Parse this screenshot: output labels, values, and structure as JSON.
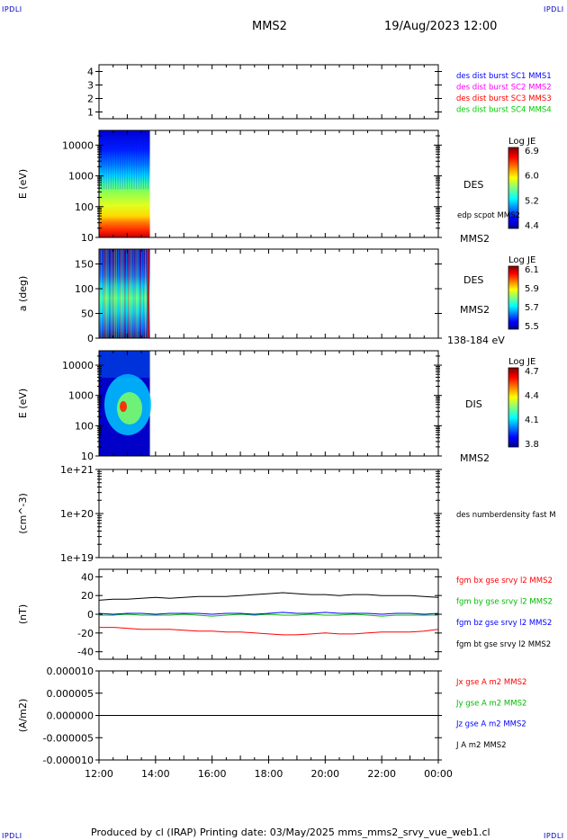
{
  "header": {
    "logo_tl": "IPDLI",
    "logo_tr": "IPDLI",
    "logo_bl": "IPDLI",
    "logo_br": "IPDLI",
    "spacecraft": "MMS2",
    "datetime": "19/Aug/2023 12:00"
  },
  "footer": {
    "text": "Produced by cl (IRAP)   Printing date: 03/May/2025   mms_mms2_srvy_vue_web1.cl"
  },
  "colors": {
    "mms1": "#0000ff",
    "mms2": "#ff00ff",
    "mms3": "#ff0000",
    "mms4": "#00cc00",
    "bx": "#ff0000",
    "by": "#00bb00",
    "bz": "#0000ff",
    "bt": "#000000"
  },
  "chart_data": [
    {
      "id": "panel1",
      "type": "line",
      "ylabel": "",
      "ylim": [
        0.5,
        4.5
      ],
      "yticks": [
        "1",
        "2",
        "3",
        "4"
      ],
      "xlim": [
        "12:00",
        "00:00"
      ],
      "legend": [
        {
          "text": "des dist burst SC1 MMS1",
          "color": "#0000ff"
        },
        {
          "text": "des dist burst SC2 MMS2",
          "color": "#ff00ff"
        },
        {
          "text": "des dist burst SC3 MMS3",
          "color": "#ff0000"
        },
        {
          "text": "des dist burst SC4 MMS4",
          "color": "#00cc00"
        }
      ],
      "series": []
    },
    {
      "id": "panel2",
      "type": "heatmap",
      "ylabel": "E (eV)",
      "scale": "log",
      "ylim": [
        10,
        30000
      ],
      "yticks": [
        "10",
        "100",
        "1000",
        "10000"
      ],
      "side_labels": [
        "DES",
        "edp scpot MMS2",
        "MMS2"
      ],
      "colorbar": {
        "title": "Log JE",
        "ticks": [
          "6.9",
          "6.0",
          "5.2",
          "4.4"
        ],
        "range": [
          4.4,
          6.9
        ]
      },
      "data_extent": [
        "12:00",
        "13:50"
      ]
    },
    {
      "id": "panel3",
      "type": "heatmap",
      "ylabel": "a (deg)",
      "ylim": [
        0,
        180
      ],
      "yticks": [
        "0",
        "50",
        "100",
        "150"
      ],
      "side_labels": [
        "DES",
        "MMS2",
        "138-184 eV"
      ],
      "colorbar": {
        "title": "Log JE",
        "ticks": [
          "6.1",
          "5.9",
          "5.7",
          "5.5"
        ],
        "range": [
          5.5,
          6.1
        ]
      },
      "data_extent": [
        "12:00",
        "13:50"
      ]
    },
    {
      "id": "panel4",
      "type": "heatmap",
      "ylabel": "E (eV)",
      "scale": "log",
      "ylim": [
        10,
        30000
      ],
      "yticks": [
        "10",
        "100",
        "1000",
        "10000"
      ],
      "side_labels": [
        "DIS",
        "MMS2"
      ],
      "colorbar": {
        "title": "Log JE",
        "ticks": [
          "4.7",
          "4.4",
          "4.1",
          "3.8"
        ],
        "range": [
          3.8,
          4.7
        ]
      },
      "data_extent": [
        "12:00",
        "13:50"
      ]
    },
    {
      "id": "panel5",
      "type": "line",
      "ylabel": "(cm^-3)",
      "scale": "log",
      "ylim": [
        1e+19,
        1e+21
      ],
      "yticks": [
        "1e+19",
        "1e+20",
        "1e+21"
      ],
      "legend": [
        {
          "text": "des numberdensity fast M",
          "color": "#000000"
        }
      ],
      "series": []
    },
    {
      "id": "panel6",
      "type": "line",
      "ylabel": "(nT)",
      "ylim": [
        -48,
        48
      ],
      "yticks": [
        "-40",
        "-20",
        "0",
        "20",
        "40"
      ],
      "legend": [
        {
          "text": "fgm bx gse srvy l2 MMS2",
          "color": "#ff0000"
        },
        {
          "text": "fgm by gse srvy l2 MMS2",
          "color": "#00bb00"
        },
        {
          "text": "fgm bz gse srvy l2 MMS2",
          "color": "#0000ff"
        },
        {
          "text": "fgm bt gse srvy l2 MMS2",
          "color": "#000000"
        }
      ],
      "x": [
        0,
        0.5,
        1,
        1.5,
        2,
        2.5,
        3,
        3.5,
        4,
        4.5,
        5,
        5.5,
        6,
        6.5,
        7,
        7.5,
        8,
        8.5,
        9,
        9.5,
        10,
        10.5,
        11,
        11.5,
        12
      ],
      "series": [
        {
          "name": "fgm bt gse srvy l2 MMS2",
          "color": "#000000",
          "values": [
            15,
            16,
            16,
            17,
            18,
            17,
            18,
            19,
            19,
            19,
            20,
            21,
            22,
            23,
            22,
            21,
            21,
            20,
            21,
            21,
            20,
            20,
            20,
            19,
            18
          ]
        },
        {
          "name": "fgm bx gse srvy l2 MMS2",
          "color": "#ff0000",
          "values": [
            -14,
            -14,
            -15,
            -16,
            -16,
            -16,
            -17,
            -18,
            -18,
            -19,
            -19,
            -20,
            -21,
            -22,
            -22,
            -21,
            -20,
            -21,
            -21,
            -20,
            -19,
            -19,
            -19,
            -18,
            -16
          ]
        },
        {
          "name": "fgm by gse srvy l2 MMS2",
          "color": "#00bb00",
          "values": [
            -1,
            -1,
            0,
            -1,
            -1,
            -1,
            0,
            -1,
            -2,
            -1,
            0,
            -1,
            0,
            -1,
            -1,
            0,
            -1,
            -1,
            0,
            -1,
            -2,
            -1,
            -1,
            -1,
            -1
          ]
        },
        {
          "name": "fgm bz gse srvy l2 MMS2",
          "color": "#0000ff",
          "values": [
            1,
            0,
            1,
            1,
            0,
            1,
            1,
            1,
            0,
            1,
            1,
            0,
            1,
            2,
            1,
            1,
            2,
            1,
            1,
            1,
            0,
            1,
            1,
            0,
            1
          ]
        }
      ]
    },
    {
      "id": "panel7",
      "type": "line",
      "ylabel": "(A/m2)",
      "ylim": [
        -1e-05,
        1e-05
      ],
      "yticks": [
        "-0.000010",
        "-0.000005",
        "0.000000",
        "0.000005",
        "0.000010"
      ],
      "xlabels": [
        "12:00",
        "14:00",
        "16:00",
        "18:00",
        "20:00",
        "22:00",
        "00:00"
      ],
      "legend": [
        {
          "text": "Jx gse A m2 MMS2",
          "color": "#ff0000"
        },
        {
          "text": "Jy gse A m2 MMS2",
          "color": "#00bb00"
        },
        {
          "text": "Jz gse A m2 MMS2",
          "color": "#0000ff"
        },
        {
          "text": "J A m2 MMS2",
          "color": "#000000"
        }
      ],
      "x": [
        0,
        12
      ],
      "series": [
        {
          "name": "J A m2 MMS2",
          "color": "#000000",
          "values": [
            0,
            0
          ]
        }
      ]
    }
  ]
}
